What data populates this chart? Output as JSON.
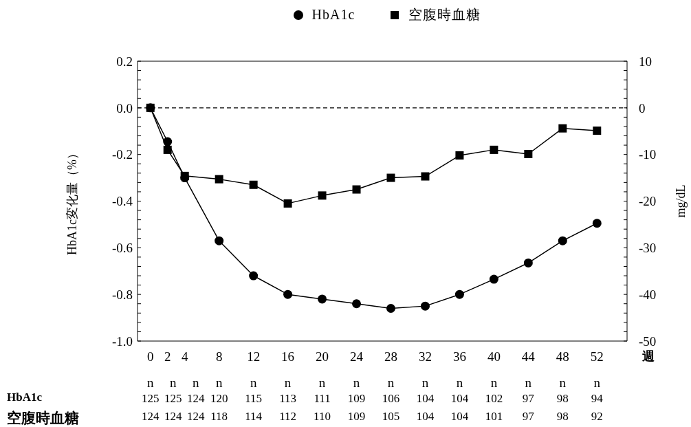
{
  "chart_data": {
    "type": "line",
    "legend": "top",
    "line_style": "solid",
    "x": [
      0,
      2,
      4,
      8,
      12,
      16,
      20,
      24,
      28,
      32,
      36,
      40,
      44,
      48,
      52
    ],
    "xlabel": "週",
    "ylabel": "HbA1c変化量（%）",
    "y2label": "mg/dL",
    "xlim": [
      -1.5,
      55.5
    ],
    "xticks": [
      0,
      2,
      4,
      8,
      12,
      16,
      20,
      24,
      28,
      32,
      36,
      40,
      44,
      48,
      52
    ],
    "ylim": [
      -1.0,
      0.2
    ],
    "yticks": [
      {
        "value": -1.0,
        "label": "-1.0"
      },
      {
        "value": -0.96,
        "label": null
      },
      {
        "value": -0.92,
        "label": null
      },
      {
        "value": -0.88,
        "label": null
      },
      {
        "value": -0.84,
        "label": null
      },
      {
        "value": -0.8,
        "label": "-0.8"
      },
      {
        "value": -0.76,
        "label": null
      },
      {
        "value": -0.72,
        "label": null
      },
      {
        "value": -0.68,
        "label": null
      },
      {
        "value": -0.64,
        "label": null
      },
      {
        "value": -0.6,
        "label": "-0.6"
      },
      {
        "value": -0.56,
        "label": null
      },
      {
        "value": -0.52,
        "label": null
      },
      {
        "value": -0.48,
        "label": null
      },
      {
        "value": -0.44,
        "label": null
      },
      {
        "value": -0.4,
        "label": "-0.4"
      },
      {
        "value": -0.36,
        "label": null
      },
      {
        "value": -0.32,
        "label": null
      },
      {
        "value": -0.28,
        "label": null
      },
      {
        "value": -0.24,
        "label": null
      },
      {
        "value": -0.2,
        "label": "-0.2"
      },
      {
        "value": -0.16,
        "label": null
      },
      {
        "value": -0.12,
        "label": null
      },
      {
        "value": -0.08,
        "label": null
      },
      {
        "value": -0.04,
        "label": null
      },
      {
        "value": 0,
        "label": "0.0"
      },
      {
        "value": 0.04,
        "label": null
      },
      {
        "value": 0.08,
        "label": null
      },
      {
        "value": 0.12,
        "label": null
      },
      {
        "value": 0.16,
        "label": null
      },
      {
        "value": 0.2,
        "label": "0.2"
      }
    ],
    "y2lim": [
      -50,
      10
    ],
    "y2ticks": [
      -50,
      {
        "value": -48,
        "label": null
      },
      {
        "value": -46,
        "label": null
      },
      {
        "value": -44,
        "label": null
      },
      {
        "value": -42,
        "label": null
      },
      -40,
      {
        "value": -38,
        "label": null
      },
      {
        "value": -36,
        "label": null
      },
      {
        "value": -34,
        "label": null
      },
      {
        "value": -32,
        "label": null
      },
      -30,
      {
        "value": -28,
        "label": null
      },
      {
        "value": -26,
        "label": null
      },
      {
        "value": -24,
        "label": null
      },
      {
        "value": -22,
        "label": null
      },
      -20,
      {
        "value": -18,
        "label": null
      },
      {
        "value": -16,
        "label": null
      },
      {
        "value": -14,
        "label": null
      },
      {
        "value": -12,
        "label": null
      },
      -10,
      {
        "value": -8,
        "label": null
      },
      {
        "value": -6,
        "label": null
      },
      {
        "value": -4,
        "label": null
      },
      {
        "value": -2,
        "label": null
      },
      0,
      {
        "value": 2,
        "label": null
      },
      {
        "value": 4,
        "label": null
      },
      {
        "value": 6,
        "label": null
      },
      {
        "value": 8,
        "label": null
      },
      10
    ],
    "ref_lines": [
      {
        "axis": "y",
        "value": 0,
        "line_style": "dashed",
        "color": "#000000"
      }
    ],
    "series": [
      {
        "name": "HbA1c",
        "color": "#000000",
        "marker": "circle",
        "values": [
          0,
          -0.145,
          -0.3,
          -0.57,
          -0.72,
          -0.8,
          -0.82,
          -0.84,
          -0.86,
          -0.85,
          -0.8,
          -0.735,
          -0.665,
          -0.57,
          -0.495
        ]
      },
      {
        "name": "空腹時血糖",
        "color": "#000000",
        "marker": "square",
        "axis": "y2",
        "values": [
          0,
          -9.0,
          -14.6,
          -15.3,
          -16.5,
          -20.5,
          -18.8,
          -17.5,
          -15.0,
          -14.7,
          -10.2,
          -9.0,
          -9.9,
          -4.4,
          -4.9
        ]
      }
    ],
    "annotations": [
      "n",
      "n",
      "n",
      "n",
      "n",
      "n",
      "n",
      "n",
      "n",
      "n",
      "n",
      "n",
      "n",
      "n",
      "n",
      "HbA1c",
      "125",
      "125",
      "124",
      "120",
      "115",
      "113",
      "111",
      "109",
      "106",
      "104",
      "104",
      "102",
      "97",
      "98",
      "94",
      "空腹時血糖",
      "124",
      "124",
      "124",
      "118",
      "114",
      "112",
      "110",
      "109",
      "105",
      "104",
      "104",
      "101",
      "97",
      "98",
      "92"
    ]
  }
}
